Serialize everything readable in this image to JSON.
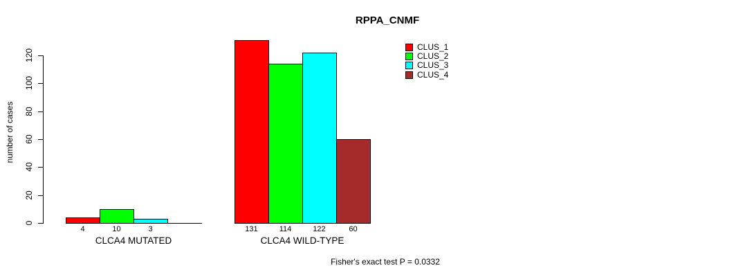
{
  "chart_data": {
    "type": "bar",
    "title": "RPPA_CNMF",
    "ylabel": "number of cases",
    "xlabel": "",
    "ylim": [
      0,
      131
    ],
    "yticks": [
      0,
      20,
      40,
      60,
      80,
      100,
      120
    ],
    "grid": false,
    "legend_position": "top-right",
    "categories": [
      "CLCA4 MUTATED",
      "CLCA4 WILD-TYPE"
    ],
    "series": [
      {
        "name": "CLUS_1",
        "color": "#ff0000",
        "values": [
          4,
          131
        ]
      },
      {
        "name": "CLUS_2",
        "color": "#00ff00",
        "values": [
          10,
          114
        ]
      },
      {
        "name": "CLUS_3",
        "color": "#00ffff",
        "values": [
          3,
          122
        ]
      },
      {
        "name": "CLUS_4",
        "color": "#a52a2a",
        "values": [
          0,
          60
        ]
      }
    ],
    "bar_value_labels": [
      [
        "4",
        "10",
        "3",
        ""
      ],
      [
        "131",
        "114",
        "122",
        "60"
      ]
    ],
    "annotation": "Fisher's exact test P = 0.0332"
  }
}
